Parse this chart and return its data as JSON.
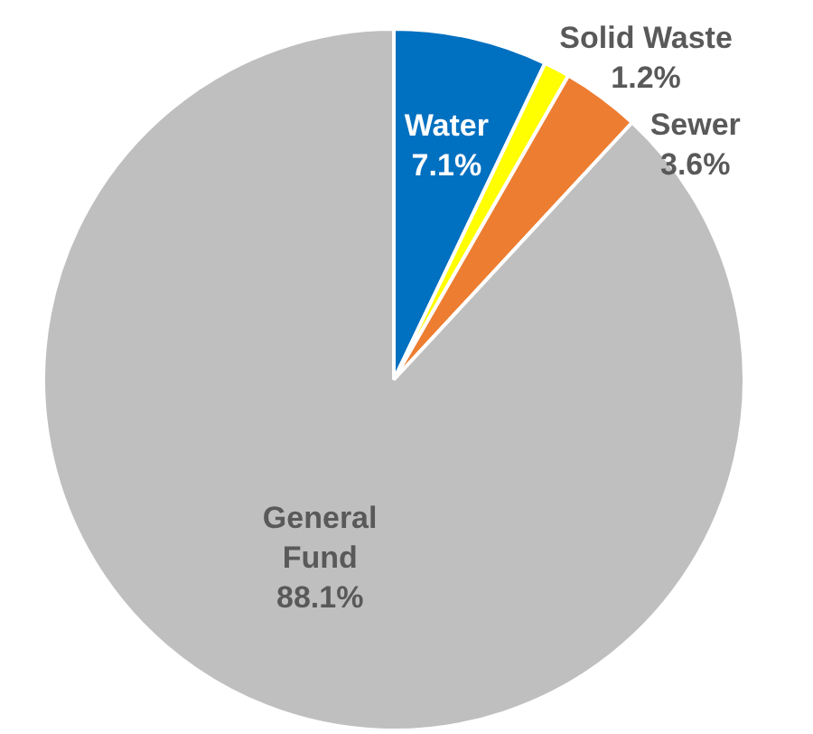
{
  "chart_data": {
    "type": "pie",
    "categories": [
      "Water",
      "Solid Waste",
      "Sewer",
      "General Fund"
    ],
    "values": [
      7.1,
      1.2,
      3.6,
      88.1
    ],
    "colors": [
      "#0070c0",
      "#ffff00",
      "#ed7d31",
      "#bfbfbf"
    ],
    "value_labels": [
      "7.1%",
      "1.2%",
      "3.6%",
      "88.1%"
    ],
    "legend": false
  }
}
